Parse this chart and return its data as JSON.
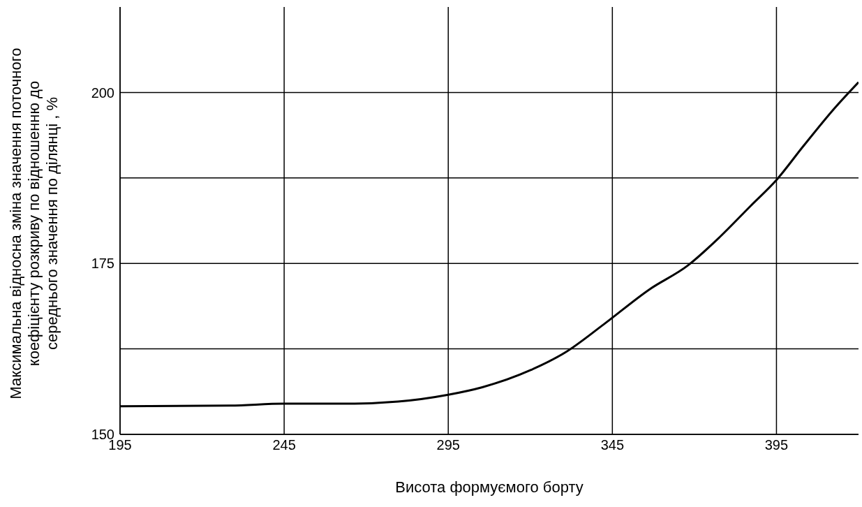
{
  "chart_data": {
    "type": "line",
    "xlabel": "Висота формуємого борту",
    "ylabel": "Максимальна відносна зміна значення поточного\nкоефіцієнту розкриву по відношенню до\nсереднього значення по ділянці , %",
    "x": [
      195,
      228.6,
      245,
      264.8,
      279.7,
      295,
      305.4,
      320.1,
      330.7,
      342.4,
      356.3,
      368,
      377.6,
      387.1,
      395,
      403.1,
      412.7,
      420
    ],
    "series": [
      {
        "color": "#000000",
        "values": [
          154.1,
          154.2,
          154.5,
          154.5,
          154.8,
          155.8,
          156.9,
          159.4,
          162,
          166.1,
          171.2,
          174.7,
          178.8,
          183.4,
          187.2,
          192.1,
          197.7,
          201.5
        ]
      }
    ],
    "xlim": [
      195,
      420
    ],
    "xticks": [
      195,
      245,
      295,
      345,
      395
    ],
    "ylim": [
      150,
      212.5
    ],
    "yticks": [
      150,
      {
        "value": 162.5,
        "label": null
      },
      175,
      {
        "value": 187.5,
        "label": null
      },
      200
    ],
    "grid": true,
    "marker": "none",
    "line_style": "solid"
  }
}
